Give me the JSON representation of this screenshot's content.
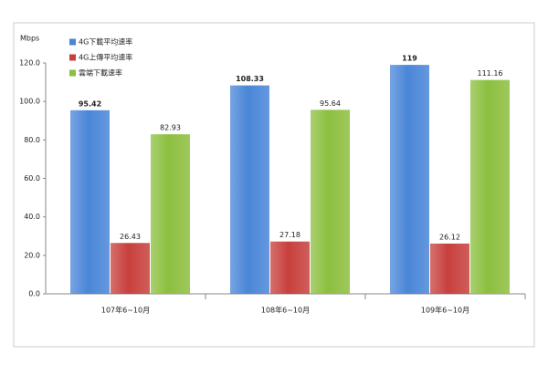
{
  "chart_data": {
    "type": "bar",
    "y_label": "Mbps",
    "categories": [
      "107年6~10月",
      "108年6~10月",
      "109年6~10月"
    ],
    "series": [
      {
        "name": "4G下載平均速率",
        "color": "#4a86d8",
        "values": [
          95.42,
          108.33,
          119
        ]
      },
      {
        "name": "4G上傳平均速率",
        "color": "#c8403d",
        "values": [
          26.43,
          27.18,
          26.12
        ]
      },
      {
        "name": "雲端下載速率",
        "color": "#8cbf3f",
        "values": [
          82.93,
          95.64,
          111.16
        ]
      }
    ],
    "ylim": [
      0,
      120
    ],
    "yticks": [
      {
        "value": 0,
        "label": "0.0"
      },
      {
        "value": 20,
        "label": "20.0"
      },
      {
        "value": 40,
        "label": "40.0"
      },
      {
        "value": 60,
        "label": "60.0"
      },
      {
        "value": 80,
        "label": "80.0"
      },
      {
        "value": 100,
        "label": "100.0"
      },
      {
        "value": 120,
        "label": "120.0"
      }
    ],
    "legend": "top-left"
  }
}
